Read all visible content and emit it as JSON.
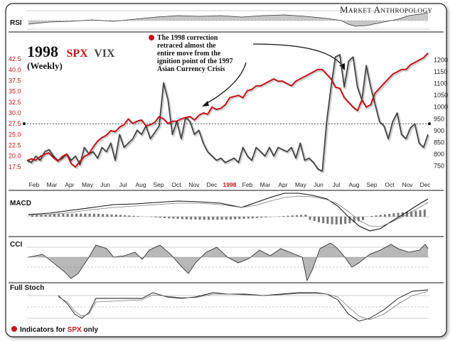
{
  "brand": "Market Anthropology",
  "title": {
    "year": "1998",
    "spx": "SPX",
    "vix": "VIX",
    "period": "(Weekly)"
  },
  "annotation": "The 1998 correction retraced almost the entire move from the ignition point of the 1997 Asian Currency Crisis",
  "annotation_lines": [
    "The 1998 correction",
    "retraced almost the",
    "entire move from the",
    "ignition point of the 1997",
    "Asian Currency Crisis"
  ],
  "footer": {
    "prefix": "Indicators for ",
    "spx": "SPX",
    "suffix": " only"
  },
  "panels": {
    "rsi": "RSI",
    "macd": "MACD",
    "cci": "CCI",
    "stoch": "Full Stoch"
  },
  "colors": {
    "spx": "#c0151b",
    "vix": "#444444",
    "ink": "#111111",
    "hist": "#777777"
  },
  "chart_data": {
    "type": "line",
    "x_labels": [
      "Feb",
      "Mar",
      "Apr",
      "May",
      "Jun",
      "Jul",
      "Aug",
      "Sep",
      "Oct",
      "Nov",
      "Dec",
      "1998",
      "Feb",
      "Mar",
      "Apr",
      "May",
      "Jun",
      "Jul",
      "Aug",
      "Sep",
      "Oct",
      "Nov",
      "Dec"
    ],
    "y_left": {
      "label": "VIX",
      "ticks": [
        "17.5",
        "20.0",
        "22.5",
        "25.0",
        "27.5",
        "30.0",
        "32.5",
        "35.0",
        "37.5",
        "40.0",
        "42.5"
      ],
      "range": [
        15,
        45
      ]
    },
    "y_right": {
      "label": "SPX",
      "ticks": [
        "750",
        "800",
        "850",
        "900",
        "950",
        "1000",
        "1050",
        "1100",
        "1150",
        "1200"
      ],
      "range": [
        700,
        1250
      ]
    },
    "reference_line": 27.5,
    "series": [
      {
        "name": "SPX",
        "axis": "right",
        "values": [
          772,
          780,
          774,
          790,
          800,
          805,
          785,
          770,
          790,
          800,
          760,
          745,
          770,
          790,
          800,
          830,
          855,
          870,
          880,
          900,
          895,
          915,
          925,
          950,
          930,
          940,
          945,
          920,
          925,
          935,
          960,
          950,
          930,
          940,
          940,
          950,
          955,
          960,
          945,
          965,
          975,
          970,
          1000,
          990,
          995,
          1010,
          1040,
          1045,
          1050,
          1040,
          1070,
          1075,
          1090,
          1090,
          1100,
          1110,
          1120,
          1110,
          1110,
          1100,
          1090,
          1110,
          1120,
          1130,
          1140,
          1150,
          1160,
          1160,
          1140,
          1120,
          1085,
          1080,
          1040,
          1020,
          1000,
          985,
          1030,
          1000,
          1010,
          1060,
          1080,
          1100,
          1120,
          1140,
          1150,
          1160,
          1160,
          1180,
          1190,
          1200,
          1210,
          1230
        ]
      },
      {
        "name": "VIX",
        "axis": "left",
        "values": [
          19,
          18.5,
          20,
          19,
          21,
          21.5,
          20,
          19,
          19.5,
          20.5,
          19,
          20,
          18,
          22,
          20.5,
          21,
          19.5,
          22,
          21,
          23,
          19,
          25,
          22,
          23,
          24,
          26,
          25,
          27,
          24,
          25.5,
          27,
          37,
          33,
          25,
          28,
          24,
          29,
          28,
          25,
          26,
          23,
          21,
          20,
          19,
          19.5,
          18.5,
          19,
          19.5,
          18.5,
          22,
          20,
          19,
          22,
          21,
          20,
          22,
          20,
          22,
          21.5,
          21,
          22,
          19.5,
          23,
          19,
          19.5,
          18.5,
          17,
          16.5,
          28,
          36,
          43,
          43.5,
          36,
          42,
          43,
          36,
          33,
          41,
          36,
          32,
          28,
          27,
          24,
          28,
          30,
          25,
          24,
          26.5,
          27.5,
          23,
          22,
          25
        ]
      }
    ]
  }
}
